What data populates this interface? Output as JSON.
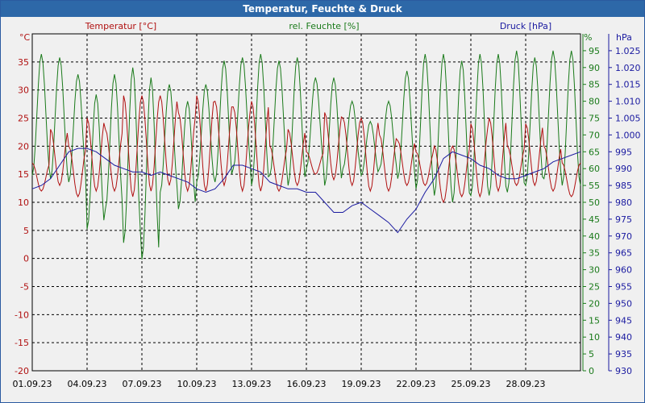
{
  "window": {
    "title": "Temperatur, Feuchte & Druck"
  },
  "colors": {
    "temp": "#b01010",
    "hum": "#1a7a1a",
    "press": "#1a1aa0",
    "grid": "#000000",
    "bg": "#f0f0f0"
  },
  "chart_data": {
    "type": "line",
    "title": "Temperatur, Feuchte & Druck",
    "x_tick_labels": [
      "01.09.23",
      "04.09.23",
      "07.09.23",
      "10.09.23",
      "13.09.23",
      "16.09.23",
      "19.09.23",
      "22.09.23",
      "25.09.23",
      "28.09.23"
    ],
    "x_range_days": [
      0,
      30
    ],
    "axes": {
      "temp": {
        "label": "Temperatur [°C]",
        "unit": "°C",
        "ylim": [
          -20,
          40
        ],
        "ticks": [
          -20,
          -15,
          -10,
          -5,
          0,
          5,
          10,
          15,
          20,
          25,
          30,
          35
        ]
      },
      "hum": {
        "label": "rel. Feuchte [%]",
        "unit": "%",
        "ylim": [
          0,
          100
        ],
        "ticks": [
          0,
          5,
          10,
          15,
          20,
          25,
          30,
          35,
          40,
          45,
          50,
          55,
          60,
          65,
          70,
          75,
          80,
          85,
          90,
          95
        ]
      },
      "press": {
        "label": "Druck [hPa]",
        "unit": "hPa",
        "ylim": [
          930,
          1030
        ],
        "ticks": [
          "930",
          "935",
          "940",
          "945",
          "950",
          "955",
          "960",
          "965",
          "970",
          "975",
          "980",
          "985",
          "990",
          "995",
          "1.000",
          "1.005",
          "1.010",
          "1.015",
          "1.020",
          "1.025"
        ]
      }
    },
    "series": [
      {
        "name": "Temperatur",
        "axis": "temp",
        "daily_min": [
          12,
          13,
          11,
          12,
          12,
          11,
          12,
          13,
          12,
          12,
          13,
          12,
          12,
          12,
          13,
          15,
          14,
          13,
          12,
          12,
          13,
          13,
          10,
          11,
          11,
          12,
          13,
          13,
          12,
          11
        ],
        "daily_max": [
          17,
          23,
          20,
          25,
          23,
          29,
          29,
          29,
          26,
          29,
          28,
          27,
          28,
          20,
          23,
          19,
          26,
          25,
          25,
          22,
          21,
          19,
          20,
          20,
          24,
          25,
          20,
          24,
          20,
          17
        ]
      },
      {
        "name": "rel. Feuchte",
        "axis": "hum",
        "daily_min": [
          58,
          57,
          56,
          42,
          48,
          38,
          33,
          53,
          48,
          56,
          56,
          60,
          55,
          58,
          55,
          60,
          55,
          60,
          58,
          60,
          57,
          54,
          52,
          50,
          52,
          52,
          53,
          55,
          57,
          55
        ],
        "daily_max": [
          94,
          93,
          88,
          82,
          88,
          90,
          87,
          85,
          80,
          85,
          92,
          93,
          94,
          92,
          93,
          87,
          87,
          80,
          74,
          80,
          89,
          94,
          94,
          92,
          94,
          94,
          95,
          93,
          95,
          95
        ]
      },
      {
        "name": "Druck",
        "axis": "press",
        "x": [
          0,
          0.5,
          1,
          1.5,
          2,
          2.5,
          3,
          3.5,
          4,
          4.5,
          5,
          5.5,
          6,
          6.5,
          7,
          7.5,
          8,
          8.5,
          9,
          9.5,
          10,
          10.5,
          11,
          11.5,
          12,
          12.5,
          13,
          13.5,
          14,
          14.5,
          15,
          15.5,
          16,
          16.5,
          17,
          17.5,
          18,
          18.5,
          19,
          19.5,
          20,
          20.5,
          21,
          21.5,
          22,
          22.5,
          23,
          23.5,
          24,
          24.5,
          25,
          25.5,
          26,
          26.5,
          27,
          27.5,
          28,
          28.5,
          29,
          29.5,
          30
        ],
        "values": [
          984,
          985,
          987,
          991,
          995,
          996,
          996,
          995,
          993,
          991,
          990,
          989,
          989,
          988,
          989,
          988,
          987,
          986,
          984,
          983,
          984,
          987,
          991,
          991,
          990,
          989,
          986,
          985,
          984,
          984,
          983,
          983,
          980,
          977,
          977,
          979,
          980,
          978,
          976,
          974,
          971,
          975,
          978,
          983,
          987,
          993,
          995,
          994,
          993,
          991,
          990,
          988,
          987,
          987,
          988,
          989,
          990,
          992,
          993,
          994,
          995
        ]
      }
    ]
  }
}
